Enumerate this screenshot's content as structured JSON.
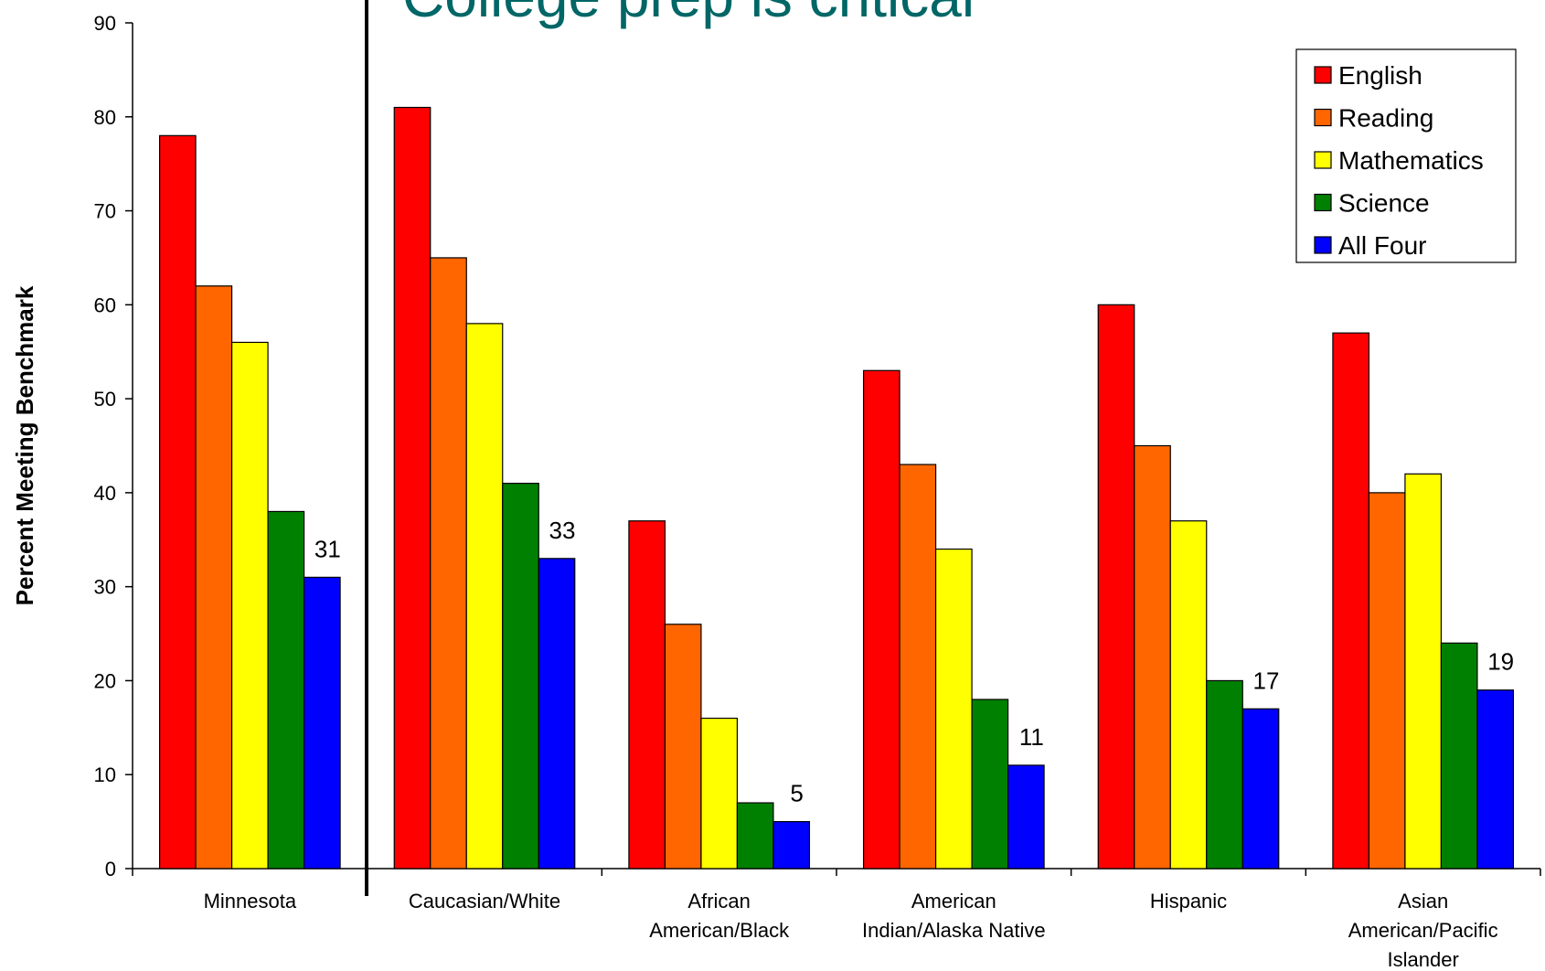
{
  "chart_data": {
    "type": "bar",
    "title": "College prep is critical",
    "ylabel": "Percent Meeting Benchmark",
    "xlabel": "",
    "ylim": [
      0,
      90
    ],
    "yticks": [
      0,
      10,
      20,
      30,
      40,
      50,
      60,
      70,
      80,
      90
    ],
    "grid": false,
    "legend_position": "top-right",
    "categories": [
      [
        "Minnesota"
      ],
      [
        "Caucasian/White"
      ],
      [
        "African",
        "American/Black"
      ],
      [
        "American",
        "Indian/Alaska Native"
      ],
      [
        "Hispanic"
      ],
      [
        "Asian",
        "American/Pacific",
        "Islander"
      ]
    ],
    "series": [
      {
        "name": "English",
        "color": "#FF0000",
        "values": [
          78,
          81,
          37,
          53,
          60,
          57
        ]
      },
      {
        "name": "Reading",
        "color": "#FF6600",
        "values": [
          62,
          65,
          26,
          43,
          45,
          40
        ]
      },
      {
        "name": "Mathematics",
        "color": "#FFFF00",
        "values": [
          56,
          58,
          16,
          34,
          37,
          42
        ]
      },
      {
        "name": "Science",
        "color": "#008000",
        "values": [
          38,
          41,
          7,
          18,
          20,
          24
        ]
      },
      {
        "name": "All Four",
        "color": "#0000FF",
        "values": [
          31,
          33,
          5,
          11,
          17,
          19
        ]
      }
    ],
    "labeled_series": "All Four",
    "data_labels": [
      "31",
      "33",
      "5",
      "11",
      "17",
      "19"
    ]
  }
}
